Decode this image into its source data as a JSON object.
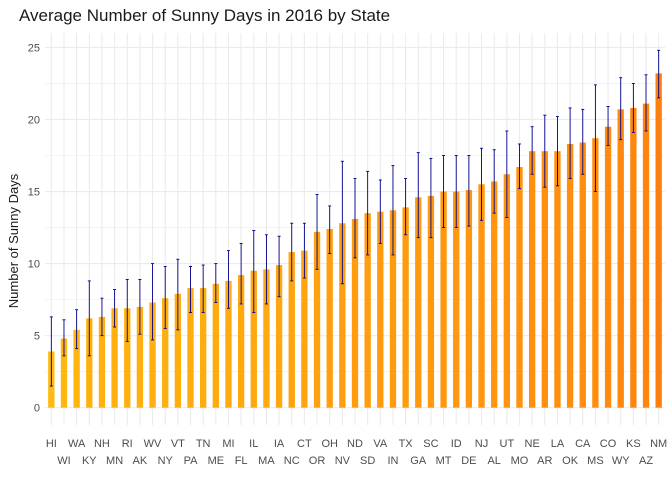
{
  "chart_data": {
    "type": "bar",
    "title": "Average Number of Sunny Days in 2016 by State",
    "xlabel": "",
    "ylabel": "Number of Sunny Days",
    "ylim": [
      -1.2,
      26
    ],
    "yticks": [
      0,
      5,
      10,
      15,
      20,
      25
    ],
    "grid": true,
    "legend": "none",
    "colors": {
      "low": "#FFB90F",
      "high": "#FF7F0E",
      "error_bar": "#00008B",
      "grid": "#EBEBEB"
    },
    "categories": [
      "HI",
      "WI",
      "WA",
      "KY",
      "NH",
      "MN",
      "RI",
      "AK",
      "WV",
      "NY",
      "VT",
      "PA",
      "TN",
      "ME",
      "MI",
      "FL",
      "IL",
      "MA",
      "IA",
      "NC",
      "CT",
      "OR",
      "OH",
      "NV",
      "ND",
      "SD",
      "VA",
      "IN",
      "TX",
      "GA",
      "SC",
      "MT",
      "ID",
      "DE",
      "NJ",
      "AL",
      "UT",
      "MO",
      "NE",
      "AR",
      "LA",
      "OK",
      "CA",
      "MS",
      "CO",
      "WY",
      "KS",
      "AZ",
      "NM"
    ],
    "values": [
      3.9,
      4.8,
      5.4,
      6.2,
      6.3,
      6.9,
      6.9,
      7.0,
      7.3,
      7.6,
      7.9,
      8.3,
      8.3,
      8.6,
      8.8,
      9.2,
      9.5,
      9.6,
      9.9,
      10.8,
      10.9,
      12.2,
      12.4,
      12.8,
      13.1,
      13.5,
      13.6,
      13.7,
      13.9,
      14.6,
      14.7,
      15.0,
      15.0,
      15.1,
      15.5,
      15.7,
      16.2,
      16.7,
      17.8,
      17.8,
      17.8,
      18.3,
      18.4,
      18.7,
      19.5,
      20.7,
      20.8,
      21.1,
      23.2
    ],
    "error_low": [
      1.5,
      3.6,
      4.1,
      3.6,
      5.0,
      5.6,
      4.6,
      5.1,
      4.7,
      5.5,
      5.4,
      6.6,
      6.6,
      7.3,
      6.9,
      7.2,
      6.6,
      7.2,
      7.7,
      8.8,
      9.0,
      9.6,
      10.7,
      8.6,
      10.4,
      10.6,
      11.4,
      10.6,
      12.0,
      11.8,
      11.8,
      12.5,
      12.5,
      12.6,
      13.0,
      13.5,
      13.2,
      15.2,
      16.2,
      15.3,
      15.4,
      15.9,
      16.2,
      15.0,
      18.2,
      18.6,
      19.1,
      19.2,
      21.5
    ],
    "error_high": [
      6.3,
      6.1,
      6.8,
      8.8,
      7.6,
      8.2,
      8.9,
      8.9,
      10.0,
      9.8,
      10.3,
      9.8,
      9.9,
      10.0,
      10.9,
      11.4,
      12.3,
      12.0,
      11.9,
      12.8,
      12.8,
      14.8,
      14.0,
      17.1,
      15.9,
      16.4,
      15.8,
      16.8,
      15.9,
      17.7,
      17.3,
      17.5,
      17.5,
      17.5,
      18.0,
      17.9,
      19.2,
      18.3,
      19.5,
      20.3,
      20.2,
      20.8,
      20.7,
      22.4,
      20.9,
      22.9,
      22.5,
      23.1,
      24.8
    ]
  }
}
